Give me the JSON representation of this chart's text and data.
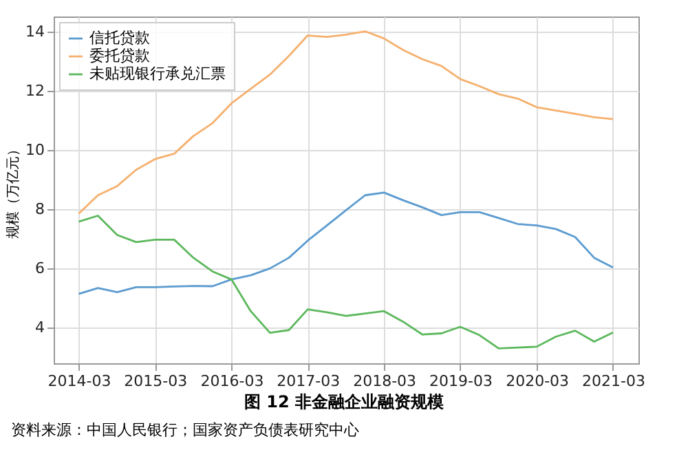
{
  "chart_data": {
    "type": "line",
    "title": "图 12 非金融企业融资规模",
    "ylabel": "规模（万亿元）",
    "annotations": [
      "资料来源：中国人民银行；国家资产负债表研究中心"
    ],
    "x": [
      "2014-03",
      "2014-06",
      "2014-09",
      "2014-12",
      "2015-03",
      "2015-06",
      "2015-09",
      "2015-12",
      "2016-03",
      "2016-06",
      "2016-09",
      "2016-12",
      "2017-03",
      "2017-06",
      "2017-09",
      "2017-12",
      "2018-03",
      "2018-06",
      "2018-09",
      "2018-12",
      "2019-03",
      "2019-06",
      "2019-09",
      "2019-12",
      "2020-03",
      "2020-06",
      "2020-09",
      "2020-12",
      "2021-03"
    ],
    "series": [
      {
        "name": "信托贷款",
        "color": "#5b9bd0",
        "values": [
          5.14,
          5.34,
          5.2,
          5.37,
          5.37,
          5.39,
          5.41,
          5.4,
          5.63,
          5.77,
          6.0,
          6.36,
          6.94,
          7.45,
          7.97,
          8.47,
          8.56,
          8.3,
          8.06,
          7.8,
          7.9,
          7.9,
          7.7,
          7.5,
          7.45,
          7.33,
          7.06,
          6.36,
          6.03
        ]
      },
      {
        "name": "委托贷款",
        "color": "#f5b06e",
        "values": [
          7.85,
          8.47,
          8.78,
          9.33,
          9.69,
          9.87,
          10.47,
          10.9,
          11.57,
          12.06,
          12.54,
          13.17,
          13.86,
          13.81,
          13.89,
          14.0,
          13.76,
          13.37,
          13.06,
          12.83,
          12.39,
          12.15,
          11.88,
          11.73,
          11.44,
          11.33,
          11.22,
          11.1,
          11.04
        ]
      },
      {
        "name": "未贴现银行承兑汇票",
        "color": "#5cb85c",
        "values": [
          7.58,
          7.78,
          7.13,
          6.89,
          6.97,
          6.97,
          6.36,
          5.9,
          5.63,
          4.56,
          3.83,
          3.92,
          4.62,
          4.52,
          4.4,
          4.48,
          4.56,
          4.2,
          3.77,
          3.81,
          4.03,
          3.75,
          3.3,
          3.33,
          3.36,
          3.7,
          3.9,
          3.53,
          3.84
        ]
      }
    ],
    "xlim": [
      "2013-11",
      "2021-07"
    ],
    "xticks": [
      "2014-03",
      "2015-03",
      "2016-03",
      "2017-03",
      "2018-03",
      "2019-03",
      "2020-03",
      "2021-03"
    ],
    "ylim": [
      2.8,
      14.5
    ],
    "yticks": [
      4,
      6,
      8,
      10,
      12,
      14
    ],
    "grid": true,
    "legend": "top left",
    "line_style": "solid",
    "marker": "none"
  }
}
